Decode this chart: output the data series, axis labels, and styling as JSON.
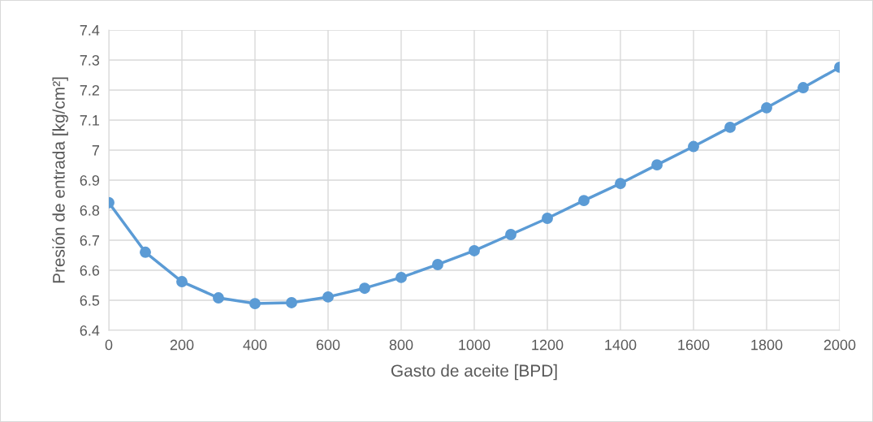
{
  "chart_data": {
    "type": "line",
    "xlabel": "Gasto de aceite [BPD]",
    "ylabel": "Presión de entrada [kg/cm²]",
    "x": [
      0,
      100,
      200,
      300,
      400,
      500,
      600,
      700,
      800,
      900,
      1000,
      1100,
      1200,
      1300,
      1400,
      1500,
      1600,
      1700,
      1800,
      1900,
      2000
    ],
    "series": [
      {
        "color": "#5b9bd5",
        "values": [
          6.825,
          6.66,
          6.562,
          6.508,
          6.489,
          6.492,
          6.511,
          6.54,
          6.576,
          6.619,
          6.665,
          6.719,
          6.773,
          6.832,
          6.889,
          6.951,
          7.012,
          7.076,
          7.141,
          7.208,
          7.276
        ]
      }
    ],
    "xlim": [
      0,
      2000
    ],
    "xticks": [
      0,
      200,
      400,
      600,
      800,
      1000,
      1200,
      1400,
      1600,
      1800,
      2000
    ],
    "ylim": [
      6.4,
      7.4
    ],
    "yticks": [
      6.4,
      6.5,
      6.6,
      6.7,
      6.8,
      6.9,
      7,
      7.1,
      7.2,
      7.3,
      7.4
    ],
    "grid": true,
    "marker": "circle",
    "line_style": "solid",
    "legend": false
  }
}
